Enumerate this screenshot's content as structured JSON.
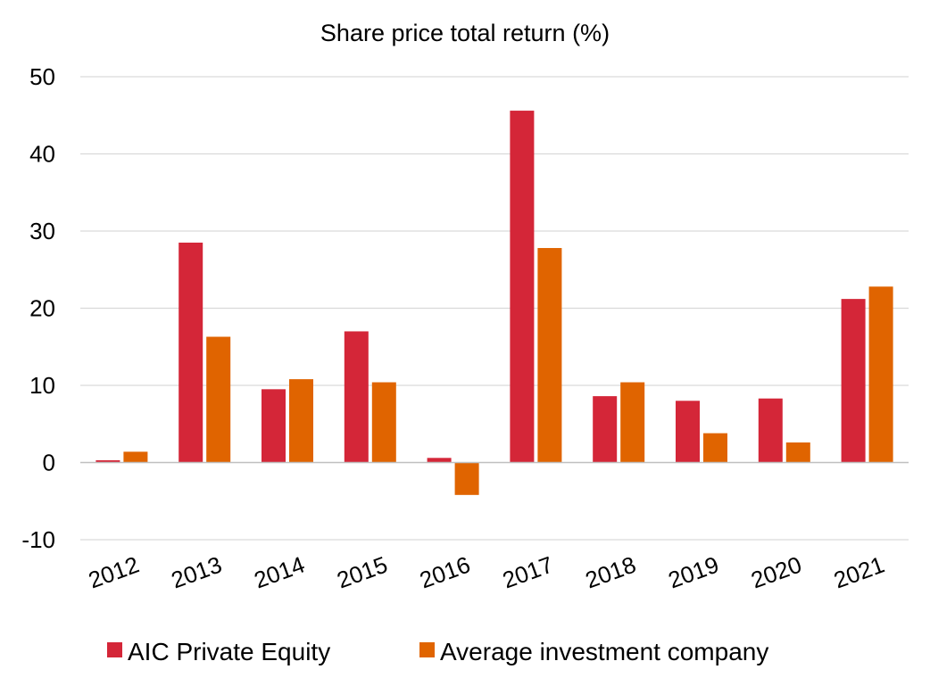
{
  "chart_data": {
    "type": "bar",
    "title": "Share price total return (%)",
    "xlabel": "",
    "ylabel": "",
    "categories": [
      "2012",
      "2013",
      "2014",
      "2015",
      "2016",
      "2017",
      "2018",
      "2019",
      "2020",
      "2021"
    ],
    "series": [
      {
        "name": "AIC Private Equity",
        "color": "#d42638",
        "values": [
          0.3,
          28.5,
          9.5,
          17.0,
          0.6,
          45.6,
          8.6,
          8.0,
          8.3,
          21.2
        ]
      },
      {
        "name": "Average investment company",
        "color": "#e06400",
        "values": [
          1.4,
          16.3,
          10.8,
          10.4,
          -4.2,
          27.8,
          10.4,
          3.8,
          2.6,
          22.8
        ]
      }
    ],
    "ylim": [
      -10,
      50
    ],
    "yticks": [
      -10,
      0,
      10,
      20,
      30,
      40,
      50
    ],
    "grid": true,
    "legend_position": "bottom"
  }
}
